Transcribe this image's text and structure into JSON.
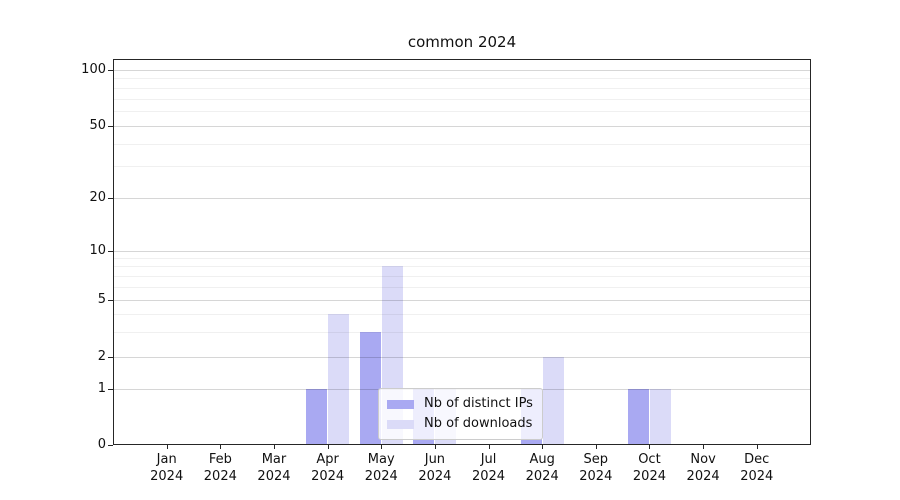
{
  "figure": {
    "background": "#ffffff",
    "text_color": "#111111"
  },
  "chart_data": {
    "type": "bar",
    "title": "common 2024",
    "year_label": "2024",
    "categories": [
      "Jan",
      "Feb",
      "Mar",
      "Apr",
      "May",
      "Jun",
      "Jul",
      "Aug",
      "Sep",
      "Oct",
      "Nov",
      "Dec"
    ],
    "x_tick_labels": [
      "Jan 2024",
      "Feb 2024",
      "Mar 2024",
      "Apr 2024",
      "May 2024",
      "Jun 2024",
      "Jul 2024",
      "Aug 2024",
      "Sep 2024",
      "Oct 2024",
      "Nov 2024",
      "Dec 2024"
    ],
    "series": [
      {
        "name": "Nb of distinct IPs",
        "color": "#a9a9f2",
        "values": [
          0,
          0,
          0,
          1,
          3,
          1,
          0,
          1,
          0,
          1,
          0,
          0
        ]
      },
      {
        "name": "Nb of downloads",
        "color": "#dbdbf8",
        "values": [
          0,
          0,
          0,
          4,
          8,
          1,
          0,
          2,
          0,
          1,
          0,
          0
        ]
      }
    ],
    "yscale": "symlog",
    "ylim": [
      0,
      114
    ],
    "y_ticks": [
      0,
      1,
      2,
      5,
      10,
      20,
      50,
      100
    ],
    "y_tick_labels": [
      "0",
      "1",
      "2",
      "5",
      "10",
      "20",
      "50",
      "100"
    ],
    "y_minor_gridlines": [
      3,
      4,
      6,
      7,
      8,
      9,
      30,
      40,
      60,
      70,
      80,
      90
    ],
    "grid": true,
    "legend_position": "inside-lower-center"
  }
}
